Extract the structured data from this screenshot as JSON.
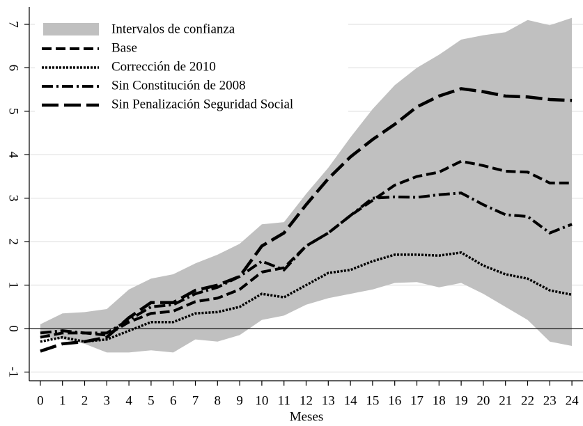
{
  "chart_data": {
    "type": "line",
    "x_label": "Meses",
    "x": [
      0,
      1,
      2,
      3,
      4,
      5,
      6,
      7,
      8,
      9,
      10,
      11,
      12,
      13,
      14,
      15,
      16,
      17,
      18,
      19,
      20,
      21,
      22,
      23,
      24
    ],
    "xlim": [
      -0.5,
      24.5
    ],
    "xticks": [
      0,
      1,
      2,
      3,
      4,
      5,
      6,
      7,
      8,
      9,
      10,
      11,
      12,
      13,
      14,
      15,
      16,
      17,
      18,
      19,
      20,
      21,
      22,
      23,
      24
    ],
    "ylim": [
      -1.2,
      7.4
    ],
    "yticks": [
      -1,
      0,
      1,
      2,
      3,
      4,
      5,
      6,
      7
    ],
    "grid": true,
    "legend": "top-left",
    "band": {
      "name": "Intervalos de confianza",
      "color": "#c0c0c0",
      "upper": [
        0.1,
        0.35,
        0.38,
        0.45,
        0.9,
        1.15,
        1.25,
        1.5,
        1.7,
        1.95,
        2.4,
        2.45,
        3.1,
        3.7,
        4.4,
        5.05,
        5.6,
        6.0,
        6.3,
        6.65,
        6.75,
        6.82,
        7.1,
        6.98,
        7.15
      ],
      "lower": [
        -0.2,
        -0.25,
        -0.35,
        -0.55,
        -0.55,
        -0.5,
        -0.55,
        -0.25,
        -0.3,
        -0.15,
        0.2,
        0.3,
        0.55,
        0.7,
        0.8,
        0.9,
        1.05,
        1.07,
        0.95,
        1.05,
        0.8,
        0.5,
        0.2,
        -0.3,
        -0.4
      ]
    },
    "series": [
      {
        "name": "Base",
        "color": "#000000",
        "style": "dashed",
        "values": [
          -0.2,
          -0.1,
          -0.1,
          -0.15,
          0.15,
          0.35,
          0.4,
          0.62,
          0.7,
          0.9,
          1.3,
          1.4,
          1.9,
          2.2,
          2.6,
          2.95,
          3.3,
          3.5,
          3.6,
          3.85,
          3.75,
          3.62,
          3.6,
          3.35,
          3.35
        ]
      },
      {
        "name": "Corrección de 2010",
        "color": "#000000",
        "style": "dotted",
        "values": [
          -0.3,
          -0.2,
          -0.3,
          -0.25,
          -0.05,
          0.15,
          0.15,
          0.35,
          0.38,
          0.5,
          0.8,
          0.72,
          1.0,
          1.28,
          1.35,
          1.55,
          1.7,
          1.7,
          1.68,
          1.75,
          1.45,
          1.25,
          1.15,
          0.88,
          0.78
        ]
      },
      {
        "name": "Sin Constitución de 2008",
        "color": "#000000",
        "style": "dashdot",
        "values": [
          -0.1,
          -0.05,
          -0.1,
          -0.1,
          0.2,
          0.5,
          0.55,
          0.8,
          0.95,
          1.2,
          1.55,
          1.35,
          1.9,
          2.2,
          2.6,
          3.0,
          3.03,
          3.02,
          3.08,
          3.12,
          2.85,
          2.62,
          2.58,
          2.2,
          2.4
        ]
      },
      {
        "name": "Sin Penalización Seguridad Social",
        "color": "#000000",
        "style": "longdash",
        "values": [
          -0.52,
          -0.35,
          -0.3,
          -0.2,
          0.25,
          0.6,
          0.6,
          0.88,
          1.0,
          1.2,
          1.9,
          2.2,
          2.85,
          3.45,
          3.95,
          4.35,
          4.7,
          5.1,
          5.35,
          5.52,
          5.45,
          5.35,
          5.33,
          5.27,
          5.25
        ]
      }
    ]
  }
}
